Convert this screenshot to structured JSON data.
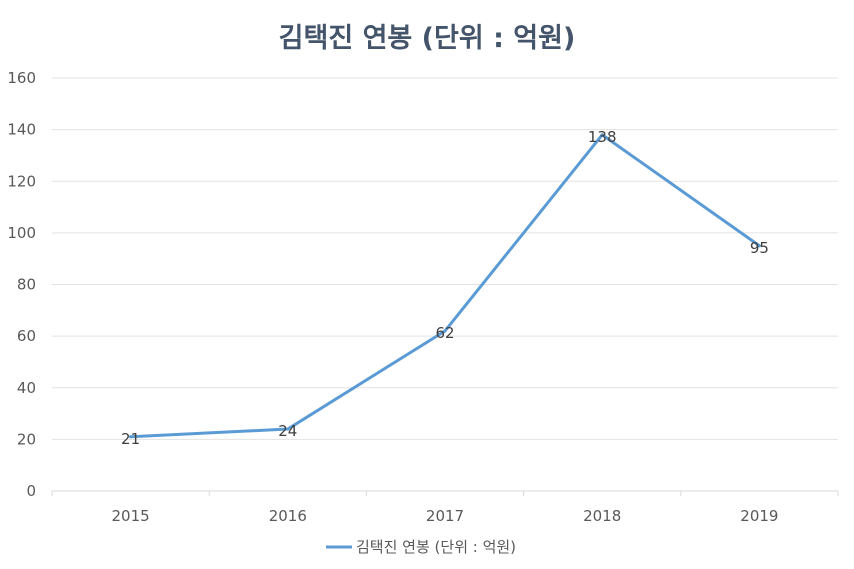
{
  "chart_data": {
    "type": "line",
    "title": "김택진 연봉 (단위 : 억원)",
    "categories": [
      "2015",
      "2016",
      "2017",
      "2018",
      "2019"
    ],
    "series": [
      {
        "name": "김택진 연봉 (단위 : 억원)",
        "values": [
          21,
          24,
          62,
          138,
          95
        ],
        "color": "#5b9bd5"
      }
    ],
    "ylim": [
      0,
      160
    ],
    "yticks": [
      0,
      20,
      40,
      60,
      80,
      100,
      120,
      140,
      160
    ],
    "grid": true,
    "legend": "bottom"
  }
}
